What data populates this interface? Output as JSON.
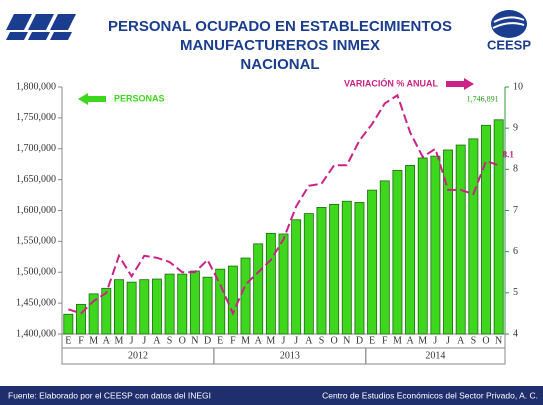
{
  "chart_data": {
    "type": "bar",
    "title_lines": [
      "PERSONAL OCUPADO EN ESTABLECIMIENTOS",
      "MANUFACTUREROS INMEX",
      "NACIONAL"
    ],
    "logo_text": "CEESP",
    "categories": [
      "E",
      "F",
      "M",
      "A",
      "M",
      "J",
      "J",
      "A",
      "S",
      "O",
      "N",
      "D",
      "E",
      "F",
      "M",
      "A",
      "M",
      "J",
      "J",
      "A",
      "S",
      "O",
      "N",
      "D",
      "E",
      "F",
      "M",
      "A",
      "M",
      "J",
      "J",
      "A",
      "S",
      "O",
      "N"
    ],
    "years": [
      "2012",
      "2012",
      "2012",
      "2012",
      "2012",
      "2012",
      "2012",
      "2012",
      "2012",
      "2012",
      "2012",
      "2012",
      "2013",
      "2013",
      "2013",
      "2013",
      "2013",
      "2013",
      "2013",
      "2013",
      "2013",
      "2013",
      "2013",
      "2013",
      "2014",
      "2014",
      "2014",
      "2014",
      "2014",
      "2014",
      "2014",
      "2014",
      "2014",
      "2014",
      "2014"
    ],
    "series": [
      {
        "name": "PERSONAS",
        "color": "#3fd61e",
        "values": [
          1432000,
          1448000,
          1465000,
          1474000,
          1488000,
          1484000,
          1488000,
          1489000,
          1497000,
          1497000,
          1502000,
          1492000,
          1505000,
          1510000,
          1523000,
          1546000,
          1563000,
          1562000,
          1585000,
          1595000,
          1605000,
          1610000,
          1615000,
          1613000,
          1633000,
          1648000,
          1665000,
          1673000,
          1685000,
          1688000,
          1698000,
          1706000,
          1716000,
          1738000,
          1746891
        ],
        "value_labels": [
          null,
          null,
          null,
          null,
          null,
          null,
          null,
          null,
          null,
          null,
          null,
          null,
          null,
          null,
          null,
          null,
          null,
          null,
          null,
          null,
          null,
          null,
          null,
          null,
          null,
          null,
          null,
          null,
          null,
          null,
          null,
          null,
          null,
          null,
          "1,746,891"
        ]
      },
      {
        "name": "VARIACIÓN % ANUAL",
        "color": "#cc2288",
        "type": "line",
        "axis": "y2",
        "values": [
          4.6,
          4.5,
          4.8,
          5.0,
          5.9,
          5.4,
          5.9,
          5.85,
          5.75,
          5.5,
          5.5,
          5.8,
          5.2,
          4.5,
          5.2,
          5.5,
          5.8,
          6.3,
          7.1,
          7.6,
          7.65,
          8.1,
          8.1,
          8.7,
          9.1,
          9.6,
          9.8,
          8.9,
          8.3,
          8.5,
          7.5,
          7.5,
          7.4,
          8.2,
          8.1
        ],
        "value_labels": [
          null,
          null,
          null,
          null,
          null,
          null,
          null,
          null,
          null,
          null,
          null,
          null,
          null,
          null,
          null,
          null,
          null,
          null,
          null,
          null,
          null,
          null,
          null,
          null,
          null,
          null,
          null,
          null,
          null,
          null,
          null,
          null,
          null,
          null,
          "8.1"
        ]
      }
    ],
    "ylim": [
      1400000,
      1800000
    ],
    "yticks": [
      {
        "value": 1400000,
        "label": "1,400,000"
      },
      {
        "value": 1450000,
        "label": "1,450,000"
      },
      {
        "value": 1500000,
        "label": "1,500,000"
      },
      {
        "value": 1550000,
        "label": "1,550,000"
      },
      {
        "value": 1600000,
        "label": "1,600,000"
      },
      {
        "value": 1650000,
        "label": "1,650,000"
      },
      {
        "value": 1700000,
        "label": "1,700,000"
      },
      {
        "value": 1750000,
        "label": "1,750,000"
      },
      {
        "value": 1800000,
        "label": "1,800,000"
      }
    ],
    "y2lim": [
      4,
      10
    ],
    "y2ticks": [
      4,
      5,
      6,
      7,
      8,
      9,
      10
    ],
    "source": "Fuente: Elaborado por el  CEESP con datos del INEGI",
    "footer_right": "Centro de Estudios Económicos del Sector Privado, A. C."
  }
}
